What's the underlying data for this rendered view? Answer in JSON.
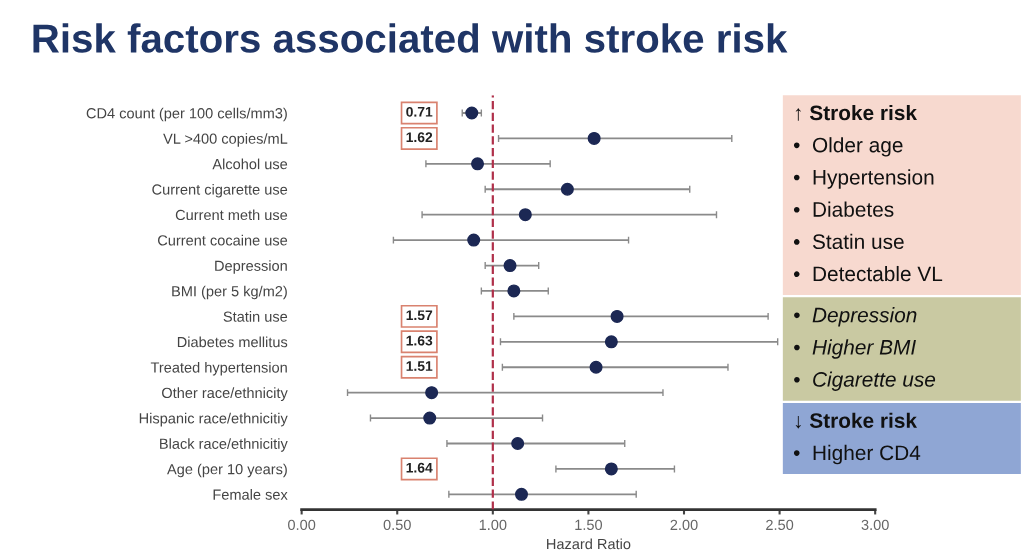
{
  "chart_data": {
    "type": "scatter",
    "orientation": "horizontal",
    "title": "Risk factors associated with stroke risk",
    "xlabel": "Hazard Ratio",
    "categories": [
      "CD4 count (per 100 cells/mm3)",
      "VL >400 copies/mL",
      "Alcohol use",
      "Current cigarette use",
      "Current meth use",
      "Current cocaine use",
      "Depression",
      "BMI (per 5 kg/m2)",
      "Statin use",
      "Diabetes mellitus",
      "Treated hypertension",
      "Other race/ethnicity",
      "Hispanic race/ethnicitiy",
      "Black race/ethnicitiy",
      "Age (per 10 years)",
      "Female sex"
    ],
    "series": [
      {
        "color": "#1c2854",
        "values": [
          0.89,
          1.53,
          0.92,
          1.39,
          1.17,
          0.9,
          1.09,
          1.11,
          1.65,
          1.62,
          1.54,
          0.68,
          0.67,
          1.13,
          1.62,
          1.15
        ],
        "errors": [
          [
            0.84,
            0.94
          ],
          [
            1.03,
            2.25
          ],
          [
            0.65,
            1.3
          ],
          [
            0.96,
            2.03
          ],
          [
            0.63,
            2.17
          ],
          [
            0.48,
            1.71
          ],
          [
            0.96,
            1.24
          ],
          [
            0.94,
            1.29
          ],
          [
            1.11,
            2.44
          ],
          [
            1.04,
            2.49
          ],
          [
            1.05,
            2.23
          ],
          [
            0.24,
            1.89
          ],
          [
            0.36,
            1.26
          ],
          [
            0.76,
            1.69
          ],
          [
            1.33,
            1.95
          ],
          [
            0.77,
            1.75
          ]
        ]
      }
    ],
    "xlim": [
      0,
      3
    ],
    "xticks": [
      {
        "value": 0,
        "label": "0.00"
      },
      {
        "value": 0.5,
        "label": "0.50"
      },
      {
        "value": 1,
        "label": "1.00"
      },
      {
        "value": 1.5,
        "label": "1.50"
      },
      {
        "value": 2,
        "label": "2.00"
      },
      {
        "value": 2.5,
        "label": "2.50"
      },
      {
        "value": 3,
        "label": "3.00"
      }
    ],
    "ref_lines": [
      {
        "axis": "x",
        "value": 1,
        "color": "#b0304a",
        "line_style": "dashed"
      }
    ],
    "marker": "circle",
    "grid": false,
    "annotations": [
      {
        "text": "0.71",
        "y": "CD4 count (per 100 cells/mm3)"
      },
      {
        "text": "1.62",
        "y": "VL >400 copies/mL"
      },
      {
        "text": "1.57",
        "y": "Statin use"
      },
      {
        "text": "1.63",
        "y": "Diabetes mellitus"
      },
      {
        "text": "1.51",
        "y": "Treated hypertension"
      },
      {
        "text": "1.64",
        "y": "Age (per 10 years)"
      },
      "↑ Stroke risk",
      "•  Older age",
      "•  Hypertension",
      "•  Diabetes",
      "•  Statin use",
      "•  Detectable VL",
      "•  Depression",
      "•  Higher BMI",
      "•  Cigarette use",
      "↓ Stroke risk",
      "•  Higher CD4"
    ]
  }
}
